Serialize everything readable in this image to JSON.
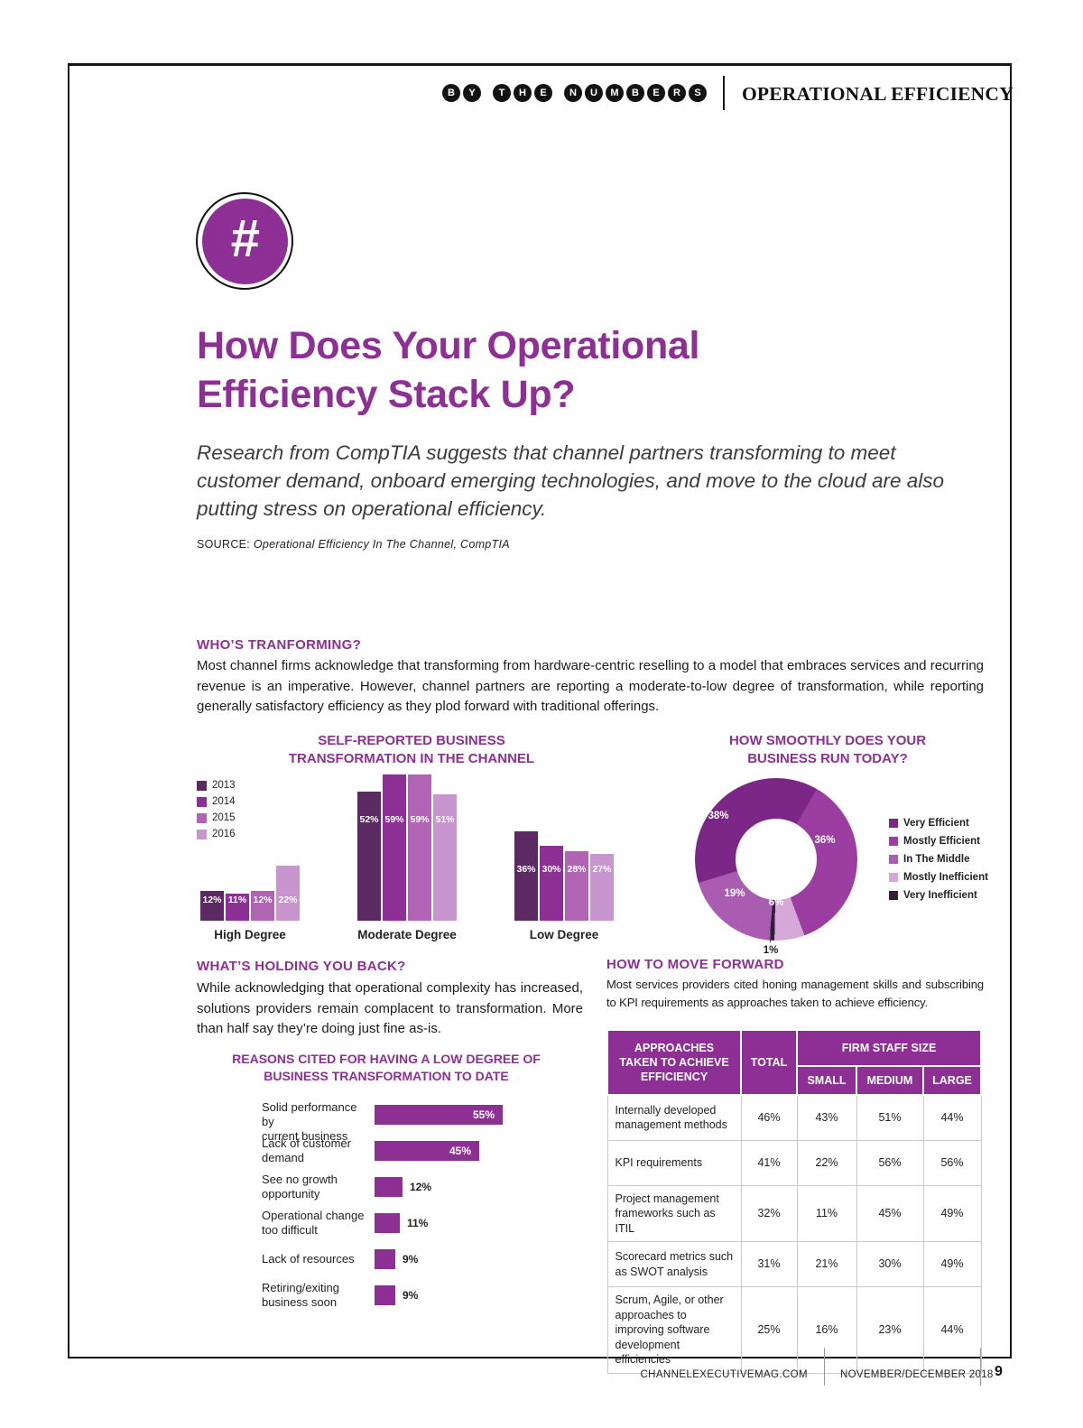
{
  "brand": {
    "purple": "#8e2f96"
  },
  "masthead": {
    "kicker_words": [
      "BY",
      "THE",
      "NUMBERS"
    ],
    "section_title": "OPERATIONAL EFFICIENCY"
  },
  "hero": {
    "icon_glyph": "#",
    "title_line1": "How Does Your Operational",
    "title_line2": "Efficiency Stack Up?",
    "deck": "Research from CompTIA suggests that channel partners transforming to meet customer demand, onboard emerging technologies, and move to the cloud are also putting stress on operational efficiency.",
    "source_label": "SOURCE: ",
    "source_value": "Operational Efficiency In The Channel, CompTIA"
  },
  "sections": {
    "whos_transforming": {
      "heading": "WHO’S TRANFORMING?",
      "body": "Most channel firms acknowledge that transforming from hardware-centric reselling to a model that embraces services and recurring revenue is an imperative. However, channel partners are reporting a moderate-to-low degree of transformation, while reporting generally satisfactory efficiency as they plod forward with traditional offerings."
    },
    "whats_holding": {
      "heading": "WHAT’S HOLDING YOU BACK?",
      "body": "While acknowledging that operational complexity has increased, solutions providers remain complacent to transformation. More than half say they’re doing just fine as-is."
    },
    "how_to_move": {
      "heading": "HOW TO MOVE FORWARD",
      "body": "Most services providers cited honing management skills and subscribing to KPI requirements as approaches taken to achieve efficiency."
    }
  },
  "chart_data": [
    {
      "type": "bar",
      "title": "SELF-REPORTED BUSINESS TRANSFORMATION IN THE CHANNEL",
      "categories": [
        "High Degree",
        "Moderate Degree",
        "Low Degree"
      ],
      "series": [
        {
          "name": "2013",
          "values": [
            12,
            52,
            36
          ]
        },
        {
          "name": "2014",
          "values": [
            11,
            59,
            30
          ]
        },
        {
          "name": "2015",
          "values": [
            12,
            59,
            28
          ]
        },
        {
          "name": "2016",
          "values": [
            22,
            51,
            27
          ]
        }
      ],
      "series_colors": [
        "#5b2a62",
        "#8e2f96",
        "#b164b4",
        "#c995cf"
      ],
      "unit": "%",
      "ylim": [
        0,
        60
      ],
      "grid": false,
      "legend_position": "top-left"
    },
    {
      "type": "pie",
      "subtype": "donut",
      "title": "HOW SMOOTHLY DOES YOUR BUSINESS RUN TODAY?",
      "labels": [
        "Very Efficient",
        "Mostly Efficient",
        "In The Middle",
        "Mostly Inefficient",
        "Very Inefficient"
      ],
      "values": [
        38,
        36,
        19,
        6,
        1
      ],
      "colors": [
        "#7c2687",
        "#9c3da2",
        "#aa5cb0",
        "#d5a8d8",
        "#341d3c"
      ],
      "unit": "%",
      "legend_position": "right"
    },
    {
      "type": "bar",
      "orientation": "horizontal",
      "title": "REASONS CITED FOR HAVING A LOW DEGREE OF BUSINESS TRANSFORMATION TO DATE",
      "categories": [
        "Solid performance by current business",
        "Lack of customer demand",
        "See no growth opportunity",
        "Operational change too difficult",
        "Lack of resources",
        "Retiring/exiting business soon"
      ],
      "label_lines": [
        [
          "Solid performance by",
          "current business"
        ],
        [
          "Lack of customer",
          "demand"
        ],
        [
          "See no growth",
          "opportunity"
        ],
        [
          "Operational change",
          "too difficult"
        ],
        [
          "Lack of resources"
        ],
        [
          "Retiring/exiting",
          "business soon"
        ]
      ],
      "values": [
        55,
        45,
        12,
        11,
        9,
        9
      ],
      "bar_color": "#8e2f96",
      "unit": "%",
      "xlim": [
        0,
        60
      ],
      "grid": false
    },
    {
      "type": "table",
      "header_col1": "APPROACHES\nTAKEN TO ACHIEVE\nEFFICIENCY",
      "header_total": "TOTAL",
      "header_group": "FIRM STAFF SIZE",
      "subheaders": [
        "SMALL",
        "MEDIUM",
        "LARGE"
      ],
      "rows": [
        {
          "label": "Internally developed management methods",
          "values": [
            "46%",
            "43%",
            "51%",
            "44%"
          ]
        },
        {
          "label": "KPI requirements",
          "values": [
            "41%",
            "22%",
            "56%",
            "56%"
          ]
        },
        {
          "label": "Project management frameworks such as ITIL",
          "values": [
            "32%",
            "11%",
            "45%",
            "49%"
          ]
        },
        {
          "label": "Scorecard metrics such as SWOT analysis",
          "values": [
            "31%",
            "21%",
            "30%",
            "49%"
          ]
        },
        {
          "label": "Scrum, Agile, or other approaches to improving software development efficiencies",
          "values": [
            "25%",
            "16%",
            "23%",
            "44%"
          ]
        }
      ]
    }
  ],
  "footer": {
    "url": "CHANNELEXECUTIVEMAG.COM",
    "date": "NOVEMBER/DECEMBER 2018",
    "page": "9"
  }
}
